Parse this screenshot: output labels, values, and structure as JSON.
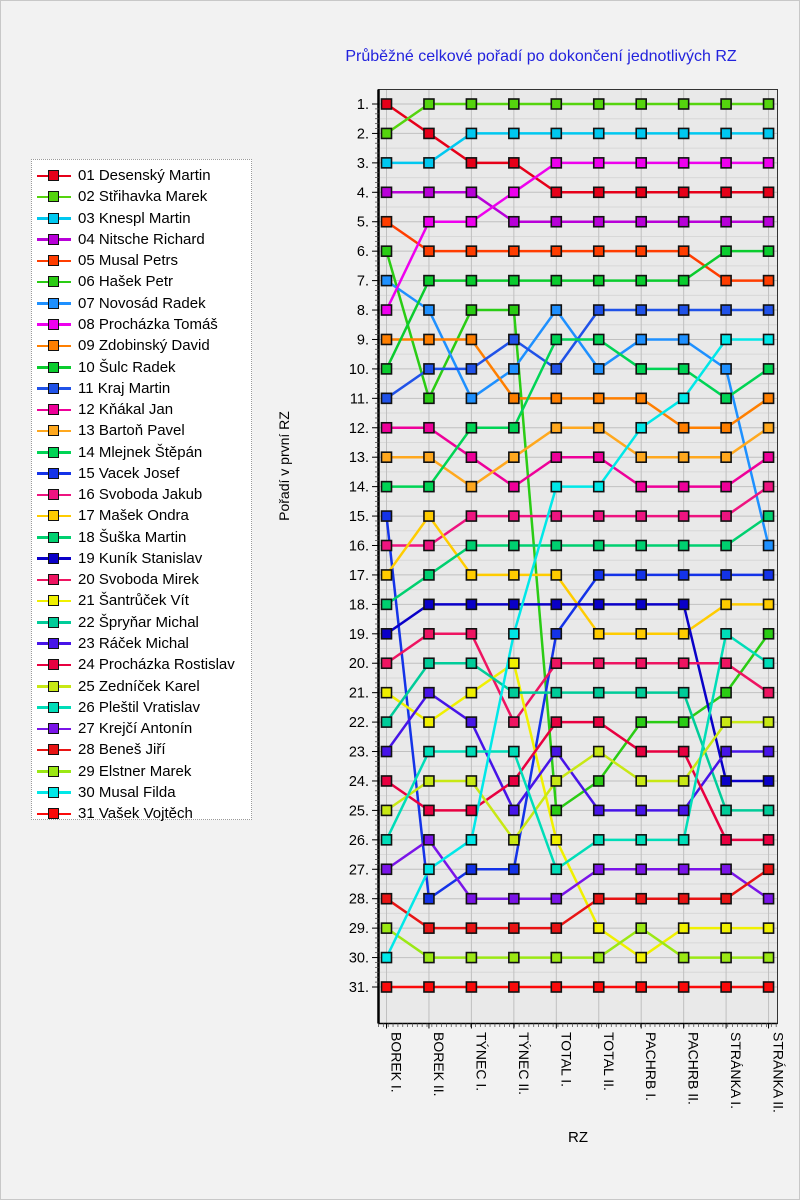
{
  "title": "Průběžné celkové pořadí po dokončení jednotlivých RZ",
  "axes": {
    "x_label": "RZ",
    "y_label": "Pořadí v první RZ",
    "y_tick_suffix": "."
  },
  "chart_data": {
    "type": "line",
    "title": "Průběžné celkové pořadí po dokončení jednotlivých RZ",
    "xlabel": "RZ",
    "ylabel": "Pořadí v první RZ",
    "x_categories": [
      "BOREK I.",
      "BOREK II.",
      "TÝNEC I.",
      "TÝNEC II.",
      "TOTAL I.",
      "TOTAL II.",
      "PACHRB I.",
      "PACHRB II.",
      "STRÁNKA I.",
      "STRÁNKA II."
    ],
    "y_axis": {
      "min": 1,
      "max": 31,
      "inverted": true,
      "tick_suffix": "."
    },
    "legend_position": "left",
    "grid": true,
    "series": [
      {
        "number": "01",
        "name": "Desenský Martin",
        "color": "#E60019",
        "ranks": [
          1,
          2,
          3,
          3,
          4,
          4,
          4,
          4,
          4,
          4
        ]
      },
      {
        "number": "02",
        "name": "Střihavka Marek",
        "color": "#55D40E",
        "ranks": [
          2,
          1,
          1,
          1,
          1,
          1,
          1,
          1,
          1,
          1
        ]
      },
      {
        "number": "03",
        "name": "Knespl Martin",
        "color": "#00C8F0",
        "ranks": [
          3,
          3,
          2,
          2,
          2,
          2,
          2,
          2,
          2,
          2
        ]
      },
      {
        "number": "04",
        "name": "Nitsche Richard",
        "color": "#B800D8",
        "ranks": [
          4,
          4,
          4,
          5,
          5,
          5,
          5,
          5,
          5,
          5
        ]
      },
      {
        "number": "05",
        "name": "Musal Petrs",
        "color": "#FF3D00",
        "ranks": [
          5,
          6,
          6,
          6,
          6,
          6,
          6,
          6,
          7,
          7
        ]
      },
      {
        "number": "06",
        "name": "Hašek Petr",
        "color": "#2ACC14",
        "ranks": [
          6,
          11,
          8,
          8,
          25,
          24,
          22,
          22,
          21,
          19
        ]
      },
      {
        "number": "07",
        "name": "Novosád Radek",
        "color": "#1E90FF",
        "ranks": [
          7,
          8,
          11,
          10,
          8,
          10,
          9,
          9,
          10,
          16
        ]
      },
      {
        "number": "08",
        "name": "Procházka Tomáš",
        "color": "#EE00EE",
        "ranks": [
          8,
          5,
          5,
          4,
          3,
          3,
          3,
          3,
          3,
          3
        ]
      },
      {
        "number": "09",
        "name": "Zdobinský David",
        "color": "#FF7F00",
        "ranks": [
          9,
          9,
          9,
          11,
          11,
          11,
          11,
          12,
          12,
          11
        ]
      },
      {
        "number": "10",
        "name": "Šulc Radek",
        "color": "#0ACC2E",
        "ranks": [
          10,
          7,
          7,
          7,
          7,
          7,
          7,
          7,
          6,
          6
        ]
      },
      {
        "number": "11",
        "name": "Kraj Martin",
        "color": "#2052E8",
        "ranks": [
          11,
          10,
          10,
          9,
          10,
          8,
          8,
          8,
          8,
          8
        ]
      },
      {
        "number": "12",
        "name": "Kňákal Jan",
        "color": "#EE0099",
        "ranks": [
          12,
          12,
          13,
          14,
          13,
          13,
          14,
          14,
          14,
          13
        ]
      },
      {
        "number": "13",
        "name": "Bartoň Pavel",
        "color": "#FFA81E",
        "ranks": [
          13,
          13,
          14,
          13,
          12,
          12,
          13,
          13,
          13,
          12
        ]
      },
      {
        "number": "14",
        "name": "Mlejnek Štěpán",
        "color": "#00D455",
        "ranks": [
          14,
          14,
          12,
          12,
          9,
          9,
          10,
          10,
          11,
          10
        ]
      },
      {
        "number": "15",
        "name": "Vacek Josef",
        "color": "#1433E8",
        "ranks": [
          15,
          28,
          27,
          27,
          19,
          17,
          17,
          17,
          17,
          17
        ]
      },
      {
        "number": "16",
        "name": "Svoboda Jakub",
        "color": "#EE1480",
        "ranks": [
          16,
          16,
          15,
          15,
          15,
          15,
          15,
          15,
          15,
          14
        ]
      },
      {
        "number": "17",
        "name": "Mašek Ondra",
        "color": "#FFCC00",
        "ranks": [
          17,
          15,
          17,
          17,
          17,
          19,
          19,
          19,
          18,
          18
        ]
      },
      {
        "number": "18",
        "name": "Šuška Martin",
        "color": "#00D070",
        "ranks": [
          18,
          17,
          16,
          16,
          16,
          16,
          16,
          16,
          16,
          15
        ]
      },
      {
        "number": "19",
        "name": "Kuník Stanislav",
        "color": "#0A00C8",
        "ranks": [
          19,
          18,
          18,
          18,
          18,
          18,
          18,
          18,
          24,
          24
        ]
      },
      {
        "number": "20",
        "name": "Svoboda Mirek",
        "color": "#EE1461",
        "ranks": [
          20,
          19,
          19,
          22,
          20,
          20,
          20,
          20,
          20,
          21
        ]
      },
      {
        "number": "21",
        "name": "Šantrůček Vít",
        "color": "#F0F000",
        "ranks": [
          21,
          22,
          21,
          20,
          26,
          29,
          30,
          29,
          29,
          29
        ]
      },
      {
        "number": "22",
        "name": "Špryňar Michal",
        "color": "#00CC99",
        "ranks": [
          22,
          20,
          20,
          21,
          21,
          21,
          21,
          21,
          25,
          25
        ]
      },
      {
        "number": "23",
        "name": "Ráček Michal",
        "color": "#4714E8",
        "ranks": [
          23,
          21,
          22,
          25,
          23,
          25,
          25,
          25,
          23,
          23
        ]
      },
      {
        "number": "24",
        "name": "Procházka Rostislav",
        "color": "#E80040",
        "ranks": [
          24,
          25,
          25,
          24,
          22,
          22,
          23,
          23,
          26,
          26
        ]
      },
      {
        "number": "25",
        "name": "Zedníček Karel",
        "color": "#C8E814",
        "ranks": [
          25,
          24,
          24,
          26,
          24,
          23,
          24,
          24,
          22,
          22
        ]
      },
      {
        "number": "26",
        "name": "Pleštil Vratislav",
        "color": "#00DDB8",
        "ranks": [
          26,
          23,
          23,
          23,
          27,
          26,
          26,
          26,
          19,
          20
        ]
      },
      {
        "number": "27",
        "name": "Krejčí Antonín",
        "color": "#7A14E8",
        "ranks": [
          27,
          26,
          28,
          28,
          28,
          27,
          27,
          27,
          27,
          28
        ]
      },
      {
        "number": "28",
        "name": "Beneš Jiří",
        "color": "#E81414",
        "ranks": [
          28,
          29,
          29,
          29,
          29,
          28,
          28,
          28,
          28,
          27
        ]
      },
      {
        "number": "29",
        "name": "Elstner Marek",
        "color": "#9BE814",
        "ranks": [
          29,
          30,
          30,
          30,
          30,
          30,
          29,
          30,
          30,
          30
        ]
      },
      {
        "number": "30",
        "name": "Musal Filda",
        "color": "#00E8E8",
        "ranks": [
          30,
          27,
          26,
          19,
          14,
          14,
          12,
          11,
          9,
          9
        ]
      },
      {
        "number": "31",
        "name": "Vašek Vojtěch",
        "color": "#FA0A0A",
        "ranks": [
          31,
          31,
          31,
          31,
          31,
          31,
          31,
          31,
          31,
          31
        ]
      }
    ]
  }
}
